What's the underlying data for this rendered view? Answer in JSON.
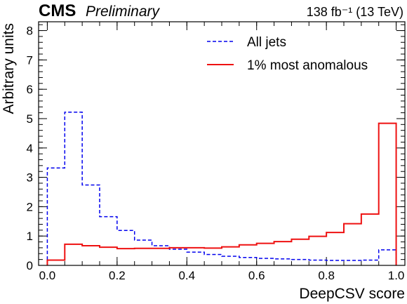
{
  "header": {
    "experiment": "CMS",
    "status": "Preliminary",
    "luminosity": "138 fb⁻¹ (13 TeV)"
  },
  "chart_data": {
    "type": "histogram",
    "xlabel": "DeepCSV score",
    "ylabel": "Arbitrary units",
    "xlim": [
      -0.025,
      1.025
    ],
    "ylim": [
      0,
      8.3
    ],
    "xticks": [
      "0.0",
      "0.2",
      "0.4",
      "0.6",
      "0.8",
      "1.0"
    ],
    "yticks": [
      "0",
      "1",
      "2",
      "3",
      "4",
      "5",
      "6",
      "7",
      "8"
    ],
    "bin_edges": [
      0.0,
      0.05,
      0.1,
      0.15,
      0.2,
      0.25,
      0.3,
      0.35,
      0.4,
      0.45,
      0.5,
      0.55,
      0.6,
      0.65,
      0.7,
      0.75,
      0.8,
      0.85,
      0.9,
      0.95,
      1.0
    ],
    "legend_position": "top-right",
    "series": [
      {
        "name": "All jets",
        "style": "dashed",
        "color": "#0000ee",
        "values": [
          3.32,
          5.22,
          2.74,
          1.66,
          1.19,
          0.86,
          0.67,
          0.55,
          0.45,
          0.37,
          0.31,
          0.27,
          0.24,
          0.22,
          0.2,
          0.18,
          0.17,
          0.17,
          0.18,
          0.53
        ]
      },
      {
        "name": "1% most anomalous",
        "style": "solid",
        "color": "#ee1111",
        "values": [
          0.18,
          0.72,
          0.67,
          0.62,
          0.57,
          0.58,
          0.58,
          0.6,
          0.6,
          0.59,
          0.63,
          0.7,
          0.75,
          0.81,
          0.89,
          0.99,
          1.12,
          1.42,
          1.75,
          4.84
        ]
      }
    ]
  }
}
